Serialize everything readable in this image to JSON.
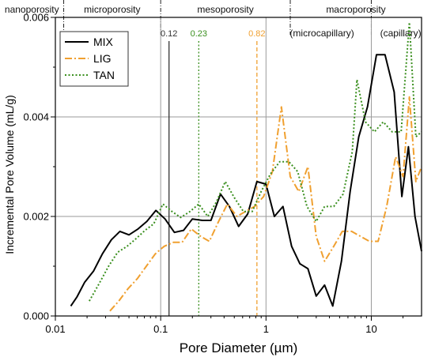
{
  "chart_data": {
    "type": "line",
    "xlabel": "Pore Diameter  (µm)",
    "ylabel": "Incremental Pore Volume  (mL/g)",
    "x_scale": "log",
    "xlim": [
      0.01,
      30
    ],
    "ylim": [
      0,
      0.006
    ],
    "x_ticks": [
      {
        "value": 0.01,
        "label": "0.01"
      },
      {
        "value": 0.1,
        "label": "0.1"
      },
      {
        "value": 1,
        "label": "1"
      },
      {
        "value": 10,
        "label": "10"
      }
    ],
    "y_ticks": [
      {
        "value": 0,
        "label": "0.000"
      },
      {
        "value": 0.002,
        "label": "0.002"
      },
      {
        "value": 0.004,
        "label": "0.004"
      },
      {
        "value": 0.006,
        "label": "0.006"
      }
    ],
    "grid": true,
    "legend_position": "top-left",
    "regions": [
      {
        "label": "nanoporosity",
        "from": 0.003,
        "to": 0.012
      },
      {
        "label": "microporosity",
        "from": 0.012,
        "to": 0.1
      },
      {
        "label": "mesoporosity",
        "from": 0.1,
        "to": 1.7
      },
      {
        "label": "macroporosity",
        "from": 1.7,
        "to": 30
      }
    ],
    "region_dividers": [
      0.012,
      0.1,
      1.7,
      10
    ],
    "sub_regions": [
      {
        "label": "(microcapillary)",
        "at": 3.4
      },
      {
        "label": "(capillary)",
        "at": 19
      }
    ],
    "reference_lines": [
      {
        "x": 0.12,
        "label": "0.12",
        "color": "#333333",
        "style": "solid"
      },
      {
        "x": 0.23,
        "label": "0.23",
        "color": "#3a8f1e",
        "style": "dotted"
      },
      {
        "x": 0.82,
        "label": "0.82",
        "color": "#f0a030",
        "style": "dashed"
      }
    ],
    "series": [
      {
        "name": "MIX",
        "color": "#000000",
        "style": "solid",
        "points": [
          [
            0.014,
            0.0002
          ],
          [
            0.016,
            0.00038
          ],
          [
            0.019,
            0.00068
          ],
          [
            0.023,
            0.0009
          ],
          [
            0.028,
            0.00125
          ],
          [
            0.034,
            0.00153
          ],
          [
            0.041,
            0.0017
          ],
          [
            0.05,
            0.00163
          ],
          [
            0.061,
            0.00175
          ],
          [
            0.074,
            0.0019
          ],
          [
            0.09,
            0.00212
          ],
          [
            0.11,
            0.00195
          ],
          [
            0.135,
            0.00168
          ],
          [
            0.165,
            0.00172
          ],
          [
            0.2,
            0.00195
          ],
          [
            0.25,
            0.00192
          ],
          [
            0.3,
            0.00192
          ],
          [
            0.37,
            0.00245
          ],
          [
            0.45,
            0.0022
          ],
          [
            0.55,
            0.0018
          ],
          [
            0.67,
            0.00205
          ],
          [
            0.82,
            0.0027
          ],
          [
            1.0,
            0.00265
          ],
          [
            1.2,
            0.002
          ],
          [
            1.45,
            0.0022
          ],
          [
            1.75,
            0.0014
          ],
          [
            2.1,
            0.00105
          ],
          [
            2.5,
            0.00095
          ],
          [
            3.0,
            0.0004
          ],
          [
            3.6,
            0.00062
          ],
          [
            4.3,
            0.0002
          ],
          [
            5.2,
            0.0011
          ],
          [
            6.3,
            0.0025
          ],
          [
            7.6,
            0.0036
          ],
          [
            9.2,
            0.0042
          ],
          [
            11.2,
            0.00525
          ],
          [
            13.5,
            0.00525
          ],
          [
            16.5,
            0.0045
          ],
          [
            19.5,
            0.0024
          ],
          [
            22.5,
            0.0034
          ],
          [
            26,
            0.002
          ],
          [
            30,
            0.0013
          ]
        ]
      },
      {
        "name": "LIG",
        "color": "#f0a030",
        "style": "dashdot",
        "points": [
          [
            0.033,
            0.0001
          ],
          [
            0.04,
            0.0003
          ],
          [
            0.049,
            0.00055
          ],
          [
            0.06,
            0.00075
          ],
          [
            0.073,
            0.001
          ],
          [
            0.089,
            0.00125
          ],
          [
            0.108,
            0.0014
          ],
          [
            0.132,
            0.00148
          ],
          [
            0.16,
            0.00148
          ],
          [
            0.195,
            0.00175
          ],
          [
            0.24,
            0.0016
          ],
          [
            0.29,
            0.0015
          ],
          [
            0.355,
            0.0019
          ],
          [
            0.43,
            0.00225
          ],
          [
            0.53,
            0.002
          ],
          [
            0.64,
            0.0021
          ],
          [
            0.78,
            0.0022
          ],
          [
            0.95,
            0.0024
          ],
          [
            1.15,
            0.0029
          ],
          [
            1.4,
            0.0042
          ],
          [
            1.7,
            0.0028
          ],
          [
            2.05,
            0.0025
          ],
          [
            2.5,
            0.003
          ],
          [
            3.0,
            0.0016
          ],
          [
            3.6,
            0.0011
          ],
          [
            4.4,
            0.0014
          ],
          [
            5.3,
            0.0017
          ],
          [
            6.5,
            0.0017
          ],
          [
            7.9,
            0.0016
          ],
          [
            9.6,
            0.0015
          ],
          [
            11.6,
            0.0015
          ],
          [
            14.0,
            0.0022
          ],
          [
            17.0,
            0.0032
          ],
          [
            20.0,
            0.0028
          ],
          [
            23.0,
            0.0044
          ],
          [
            26.5,
            0.0027
          ],
          [
            30,
            0.003
          ]
        ]
      },
      {
        "name": "TAN",
        "color": "#3a8f1e",
        "style": "dotted",
        "points": [
          [
            0.021,
            0.0003
          ],
          [
            0.026,
            0.00065
          ],
          [
            0.032,
            0.001
          ],
          [
            0.039,
            0.00128
          ],
          [
            0.048,
            0.0014
          ],
          [
            0.058,
            0.00155
          ],
          [
            0.071,
            0.00172
          ],
          [
            0.086,
            0.00185
          ],
          [
            0.105,
            0.00225
          ],
          [
            0.128,
            0.0021
          ],
          [
            0.155,
            0.00198
          ],
          [
            0.19,
            0.0021
          ],
          [
            0.23,
            0.00225
          ],
          [
            0.28,
            0.002
          ],
          [
            0.34,
            0.0023
          ],
          [
            0.41,
            0.0027
          ],
          [
            0.5,
            0.00238
          ],
          [
            0.61,
            0.0021
          ],
          [
            0.74,
            0.0021
          ],
          [
            0.9,
            0.0025
          ],
          [
            1.1,
            0.00285
          ],
          [
            1.35,
            0.0031
          ],
          [
            1.65,
            0.0031
          ],
          [
            2.0,
            0.0029
          ],
          [
            2.45,
            0.0022
          ],
          [
            3.0,
            0.0019
          ],
          [
            3.6,
            0.0022
          ],
          [
            4.4,
            0.0022
          ],
          [
            5.4,
            0.00245
          ],
          [
            6.6,
            0.0033
          ],
          [
            7.3,
            0.00475
          ],
          [
            8.8,
            0.0039
          ],
          [
            10.7,
            0.0037
          ],
          [
            13.0,
            0.0039
          ],
          [
            15.8,
            0.0037
          ],
          [
            19.2,
            0.0037
          ],
          [
            23.0,
            0.0059
          ],
          [
            26.5,
            0.0036
          ],
          [
            30,
            0.0037
          ]
        ]
      }
    ]
  }
}
